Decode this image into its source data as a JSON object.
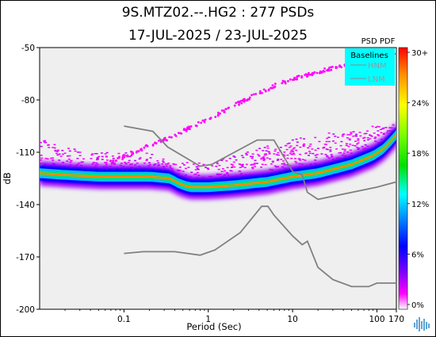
{
  "title_line1": "9S.MTZ02.--.HG2 : 277 PSDs",
  "title_line2": "17-JUL-2025 / 23-JUL-2025",
  "colorbar_title": "PSD PDF",
  "chart_data": {
    "type": "heatmap",
    "xlabel": "Period (Sec)",
    "ylabel": "dB",
    "x_scale": "log",
    "xlim": [
      0.01,
      170
    ],
    "ylim": [
      -200,
      -50
    ],
    "x_ticks": [
      {
        "value": 0.1,
        "label": "0.1"
      },
      {
        "value": 1,
        "label": "1"
      },
      {
        "value": 10,
        "label": "10"
      },
      {
        "value": 100,
        "label": "100"
      },
      {
        "value": 170,
        "label": "170"
      }
    ],
    "y_ticks": [
      -50,
      -80,
      -110,
      -140,
      -170,
      -200
    ],
    "legend": {
      "title": "Baselines",
      "position": "top-right",
      "entries": [
        {
          "name": "HNM",
          "color": "#8a8a8a"
        },
        {
          "name": "LNM",
          "color": "#8a8a8a"
        }
      ]
    },
    "colorbar": {
      "ticks": [
        "30+",
        "24%",
        "18%",
        "12%",
        "6%",
        "0%"
      ],
      "colors": [
        "#ff0000",
        "#ff8c00",
        "#ffff00",
        "#7fff00",
        "#00e000",
        "#00ffff",
        "#0080ff",
        "#0000ff",
        "#8000ff",
        "#ff00ff",
        "#ffffff"
      ]
    },
    "baselines": {
      "HNM": [
        [
          0.1,
          -95
        ],
        [
          0.22,
          -98
        ],
        [
          0.33,
          -107
        ],
        [
          0.8,
          -118
        ],
        [
          1.1,
          -117
        ],
        [
          3.8,
          -103
        ],
        [
          6,
          -103
        ],
        [
          7.3,
          -110
        ],
        [
          10,
          -121
        ],
        [
          13,
          -123
        ],
        [
          15,
          -133
        ],
        [
          20,
          -137
        ],
        [
          100,
          -130
        ],
        [
          170,
          -127
        ]
      ],
      "LNM": [
        [
          0.1,
          -168
        ],
        [
          0.17,
          -167
        ],
        [
          0.4,
          -167
        ],
        [
          0.8,
          -169
        ],
        [
          1.2,
          -166
        ],
        [
          2.4,
          -156
        ],
        [
          4.3,
          -141
        ],
        [
          5.1,
          -141
        ],
        [
          6,
          -146
        ],
        [
          10,
          -158
        ],
        [
          13,
          -163
        ],
        [
          15,
          -161
        ],
        [
          20,
          -176
        ],
        [
          30,
          -183
        ],
        [
          50,
          -187
        ],
        [
          80,
          -187
        ],
        [
          100,
          -185
        ],
        [
          170,
          -185
        ]
      ]
    },
    "core_band": [
      [
        0.01,
        -122
      ],
      [
        0.02,
        -123
      ],
      [
        0.05,
        -124
      ],
      [
        0.1,
        -124
      ],
      [
        0.2,
        -124
      ],
      [
        0.35,
        -125
      ],
      [
        0.45,
        -128
      ],
      [
        0.6,
        -130
      ],
      [
        1,
        -130
      ],
      [
        2,
        -129
      ],
      [
        5,
        -127
      ],
      [
        10,
        -124
      ],
      [
        20,
        -122
      ],
      [
        50,
        -117
      ],
      [
        90,
        -112
      ],
      [
        120,
        -108
      ],
      [
        150,
        -103
      ],
      [
        170,
        -100
      ]
    ],
    "upper_cloud": [
      [
        0.01,
        -103
      ],
      [
        0.02,
        -108
      ],
      [
        0.05,
        -110
      ],
      [
        0.1,
        -110
      ],
      [
        0.2,
        -111
      ],
      [
        0.4,
        -116
      ],
      [
        1,
        -116
      ],
      [
        2,
        -112
      ],
      [
        5,
        -106
      ],
      [
        10,
        -103
      ],
      [
        20,
        -100
      ],
      [
        50,
        -98
      ],
      [
        100,
        -95
      ],
      [
        170,
        -93
      ]
    ],
    "lower_cloud": [
      [
        0.01,
        -130
      ],
      [
        0.05,
        -129
      ],
      [
        0.2,
        -128
      ],
      [
        0.45,
        -131
      ],
      [
        1,
        -133
      ],
      [
        5,
        -131
      ],
      [
        10,
        -129
      ],
      [
        50,
        -121
      ],
      [
        100,
        -115
      ],
      [
        170,
        -107
      ]
    ],
    "rising_trend": [
      [
        0.06,
        -117
      ],
      [
        0.1,
        -112
      ],
      [
        0.3,
        -103
      ],
      [
        1,
        -91
      ],
      [
        3,
        -79
      ],
      [
        6,
        -72
      ],
      [
        10,
        -68
      ],
      [
        20,
        -64
      ],
      [
        40,
        -60
      ],
      [
        80,
        -57
      ],
      [
        120,
        -55
      ],
      [
        170,
        -54
      ]
    ]
  }
}
